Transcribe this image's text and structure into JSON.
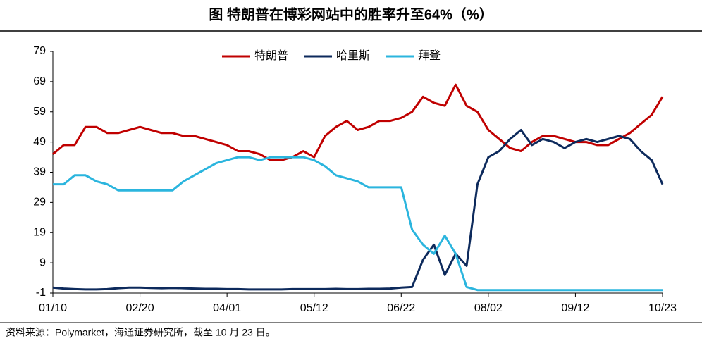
{
  "chart_data": {
    "type": "line",
    "title": "图 特朗普在博彩网站中的胜率升至64%（%）",
    "source": "资料来源：Polymarket，海通证券研究所，截至 10 月 23 日。",
    "categories": [
      "01/10",
      null,
      null,
      null,
      null,
      null,
      null,
      null,
      "02/20",
      null,
      null,
      null,
      null,
      null,
      null,
      null,
      "04/01",
      null,
      null,
      null,
      null,
      null,
      null,
      null,
      "05/12",
      null,
      null,
      null,
      null,
      null,
      null,
      null,
      "06/22",
      null,
      null,
      null,
      null,
      null,
      null,
      null,
      "08/02",
      null,
      null,
      null,
      null,
      null,
      null,
      null,
      "09/12",
      null,
      null,
      null,
      null,
      null,
      null,
      null,
      "10/23"
    ],
    "series": [
      {
        "name": "特朗普",
        "color": "#c00000",
        "values": [
          45,
          48,
          48,
          54,
          54,
          52,
          52,
          53,
          54,
          53,
          52,
          52,
          51,
          51,
          50,
          49,
          48,
          46,
          46,
          45,
          43,
          43,
          44,
          46,
          44,
          51,
          54,
          56,
          53,
          54,
          56,
          56,
          57,
          59,
          64,
          62,
          61,
          68,
          61,
          59,
          53,
          50,
          47,
          46,
          49,
          51,
          51,
          50,
          49,
          49,
          48,
          48,
          50,
          52,
          55,
          58,
          64
        ]
      },
      {
        "name": "哈里斯",
        "color": "#0d2a5c",
        "values": [
          0.8,
          0.5,
          0.3,
          0.2,
          0.2,
          0.3,
          0.6,
          0.8,
          0.8,
          0.7,
          0.6,
          0.7,
          0.6,
          0.5,
          0.4,
          0.4,
          0.3,
          0.3,
          0.2,
          0.2,
          0.2,
          0.2,
          0.3,
          0.3,
          0.3,
          0.3,
          0.4,
          0.3,
          0.3,
          0.4,
          0.4,
          0.5,
          0.8,
          1,
          10,
          15,
          5,
          12,
          8,
          35,
          44,
          46,
          50,
          53,
          48,
          50,
          49,
          47,
          49,
          50,
          49,
          50,
          51,
          50,
          46,
          43,
          35
        ]
      },
      {
        "name": "拜登",
        "color": "#2bb5de",
        "values": [
          35,
          35,
          38,
          38,
          36,
          35,
          33,
          33,
          33,
          33,
          33,
          33,
          36,
          38,
          40,
          42,
          43,
          44,
          44,
          43,
          44,
          44,
          44,
          44,
          43,
          41,
          38,
          37,
          36,
          34,
          34,
          34,
          34,
          20,
          15,
          12,
          18,
          12,
          1,
          0,
          0,
          0,
          0,
          0,
          0,
          0,
          0,
          0,
          0,
          0,
          0,
          0,
          0,
          0,
          0,
          0,
          0
        ]
      }
    ],
    "ylim": [
      -1,
      79
    ],
    "yticks": [
      -1,
      9,
      19,
      29,
      39,
      49,
      59,
      69,
      79
    ],
    "grid": false,
    "legend": "top"
  }
}
